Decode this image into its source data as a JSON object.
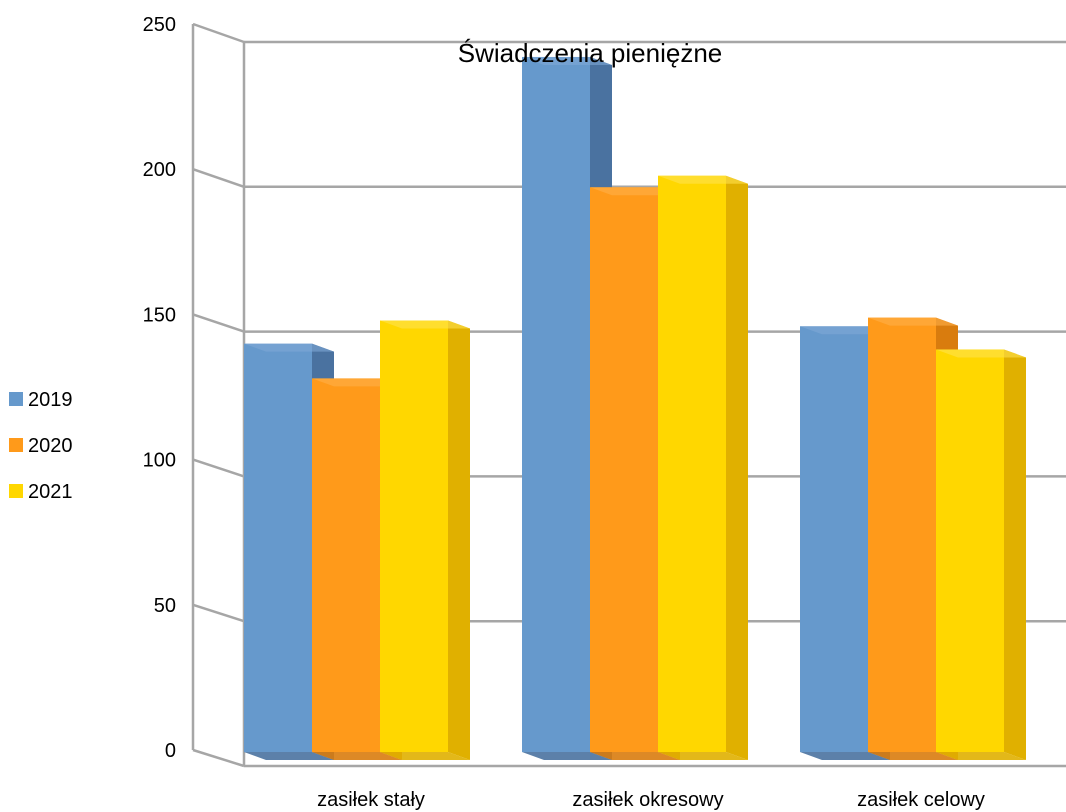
{
  "chart_data": {
    "type": "bar",
    "title": "Świadczenia pieniężne",
    "categories": [
      "zasiłek stały",
      "zasiłek okresowy",
      "zasiłek celowy"
    ],
    "series": [
      {
        "name": "2019",
        "values": [
          141,
          240,
          147
        ],
        "color": "#6699cc",
        "side": "#4a72a0",
        "top": "#7ea9d6"
      },
      {
        "name": "2020",
        "values": [
          129,
          195,
          150
        ],
        "color": "#ff9a1a",
        "side": "#d97c0e",
        "top": "#ffb04a"
      },
      {
        "name": "2021",
        "values": [
          149,
          199,
          139
        ],
        "color": "#ffd700",
        "side": "#e0b000",
        "top": "#ffe24d"
      }
    ],
    "yticks": [
      "0",
      "50",
      "100",
      "150",
      "200",
      "250"
    ],
    "ylim": [
      0,
      250
    ],
    "grid": true,
    "legend": "left",
    "style": "3d-clustered-column"
  }
}
